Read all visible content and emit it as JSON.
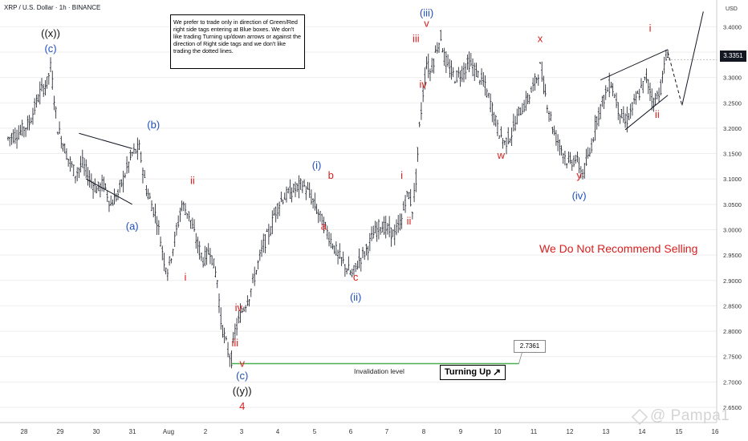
{
  "header": {
    "title": "XRP / U.S. Dollar · 1h · BINANCE"
  },
  "note_text": "We prefer to trade only in direction of Green/Red right side tags entering at Blue boxes. We don't like trading Turning up/down arrows or against the direction of Right side tags and we don't like trading the dotted lines.",
  "turning_up": {
    "label": "Turning Up",
    "icon": "arrow-up-right-icon"
  },
  "invalidation": {
    "label": "Invalidation level",
    "value": "2.7361"
  },
  "recommendation": "We Do Not Recommend Selling",
  "current_price": "3.3351",
  "axis_unit": "USD",
  "watermark": "@ Pampa1",
  "colors": {
    "red": "#d91e1e",
    "blue": "#1f4fbf",
    "green": "#4caf50",
    "candle": "#131722",
    "grid": "#eeeeee"
  },
  "chart_data": {
    "type": "candlestick-elliott-wave",
    "symbol": "XRP / U.S. Dollar",
    "timeframe": "1h",
    "exchange": "BINANCE",
    "ylim": [
      2.62,
      3.44
    ],
    "y_ticks": [
      "3.4000",
      "3.3500",
      "3.3000",
      "3.2500",
      "3.2000",
      "3.1500",
      "3.1000",
      "3.0500",
      "3.0000",
      "2.9500",
      "2.9000",
      "2.8500",
      "2.8000",
      "2.7500",
      "2.7000",
      "2.6500"
    ],
    "x_ticks": [
      "28",
      "29",
      "30",
      "31",
      "Aug",
      "2",
      "3",
      "4",
      "5",
      "6",
      "7",
      "8",
      "9",
      "10",
      "11",
      "12",
      "13",
      "14",
      "15",
      "16"
    ],
    "price_path": [
      [
        0,
        3.18
      ],
      [
        3,
        3.19
      ],
      [
        6,
        3.21
      ],
      [
        9,
        3.27
      ],
      [
        11,
        3.29
      ],
      [
        12,
        3.32
      ],
      [
        14,
        3.2
      ],
      [
        17,
        3.14
      ],
      [
        19,
        3.11
      ],
      [
        21,
        3.13
      ],
      [
        23,
        3.1
      ],
      [
        25,
        3.08
      ],
      [
        27,
        3.09
      ],
      [
        29,
        3.05
      ],
      [
        31,
        3.07
      ],
      [
        33,
        3.11
      ],
      [
        35,
        3.15
      ],
      [
        37,
        3.16
      ],
      [
        39,
        3.08
      ],
      [
        42,
        3.02
      ],
      [
        44,
        2.94
      ],
      [
        45,
        2.92
      ],
      [
        47,
        2.98
      ],
      [
        49,
        3.05
      ],
      [
        51,
        3.03
      ],
      [
        53,
        2.98
      ],
      [
        55,
        2.94
      ],
      [
        57,
        2.96
      ],
      [
        59,
        2.9
      ],
      [
        60,
        2.82
      ],
      [
        62,
        2.76
      ],
      [
        63,
        2.745
      ],
      [
        64,
        2.8
      ],
      [
        66,
        2.84
      ],
      [
        68,
        2.87
      ],
      [
        70,
        2.92
      ],
      [
        72,
        2.97
      ],
      [
        74,
        3.0
      ],
      [
        75,
        3.03
      ],
      [
        77,
        3.06
      ],
      [
        79,
        3.07
      ],
      [
        81,
        3.08
      ],
      [
        83,
        3.09
      ],
      [
        85,
        3.07
      ],
      [
        87,
        3.04
      ],
      [
        89,
        3.01
      ],
      [
        91,
        2.98
      ],
      [
        93,
        2.95
      ],
      [
        95,
        2.93
      ],
      [
        97,
        2.91
      ],
      [
        99,
        2.94
      ],
      [
        101,
        2.96
      ],
      [
        103,
        2.99
      ],
      [
        105,
        3.01
      ],
      [
        107,
        3.0
      ],
      [
        109,
        2.99
      ],
      [
        111,
        3.02
      ],
      [
        112,
        3.06
      ],
      [
        113,
        3.07
      ],
      [
        114,
        3.04
      ],
      [
        115,
        3.1
      ],
      [
        116,
        3.2
      ],
      [
        117,
        3.27
      ],
      [
        118,
        3.33
      ],
      [
        119,
        3.31
      ],
      [
        121,
        3.36
      ],
      [
        122,
        3.38
      ],
      [
        123,
        3.34
      ],
      [
        124,
        3.32
      ],
      [
        126,
        3.3
      ],
      [
        128,
        3.31
      ],
      [
        130,
        3.33
      ],
      [
        132,
        3.31
      ],
      [
        134,
        3.29
      ],
      [
        136,
        3.25
      ],
      [
        138,
        3.2
      ],
      [
        140,
        3.17
      ],
      [
        142,
        3.19
      ],
      [
        144,
        3.23
      ],
      [
        146,
        3.25
      ],
      [
        148,
        3.28
      ],
      [
        150,
        3.32
      ],
      [
        152,
        3.25
      ],
      [
        154,
        3.19
      ],
      [
        156,
        3.16
      ],
      [
        158,
        3.13
      ],
      [
        160,
        3.14
      ],
      [
        162,
        3.11
      ],
      [
        164,
        3.15
      ],
      [
        166,
        3.22
      ],
      [
        168,
        3.26
      ],
      [
        170,
        3.29
      ],
      [
        172,
        3.24
      ],
      [
        174,
        3.21
      ],
      [
        176,
        3.24
      ],
      [
        178,
        3.27
      ],
      [
        180,
        3.3
      ],
      [
        182,
        3.25
      ],
      [
        184,
        3.28
      ],
      [
        185,
        3.32
      ],
      [
        186,
        3.35
      ]
    ],
    "projection": [
      [
        186,
        3.35
      ],
      [
        190,
        3.245
      ],
      [
        196,
        3.43
      ]
    ],
    "trendlines": [
      {
        "from": [
          20,
          3.19
        ],
        "to": [
          35,
          3.16
        ]
      },
      {
        "from": [
          22,
          3.1
        ],
        "to": [
          35,
          3.05
        ]
      },
      {
        "from": [
          167,
          3.295
        ],
        "to": [
          186,
          3.355
        ]
      },
      {
        "from": [
          174,
          3.197
        ],
        "to": [
          186,
          3.265
        ]
      }
    ],
    "invalidation_line": {
      "from": [
        63,
        2.7361
      ],
      "to": [
        144,
        2.7361
      ]
    },
    "labels": [
      {
        "text": "((x))",
        "x": 12,
        "y": 3.38,
        "color": "black"
      },
      {
        "text": "(c)",
        "x": 12,
        "y": 3.35,
        "color": "blue"
      },
      {
        "text": "(a)",
        "x": 35,
        "y": 3.0,
        "color": "blue"
      },
      {
        "text": "(b)",
        "x": 41,
        "y": 3.2,
        "color": "blue"
      },
      {
        "text": "ii",
        "x": 52,
        "y": 3.09,
        "color": "red"
      },
      {
        "text": "i",
        "x": 50,
        "y": 2.9,
        "color": "red"
      },
      {
        "text": "iv",
        "x": 65,
        "y": 2.84,
        "color": "red"
      },
      {
        "text": "iii",
        "x": 64,
        "y": 2.77,
        "color": "red"
      },
      {
        "text": "v",
        "x": 66,
        "y": 2.73,
        "color": "red"
      },
      {
        "text": "(c)",
        "x": 66,
        "y": 2.705,
        "color": "blue"
      },
      {
        "text": "((y))",
        "x": 66,
        "y": 2.675,
        "color": "black"
      },
      {
        "text": "4",
        "x": 66,
        "y": 2.645,
        "color": "red"
      },
      {
        "text": "(i)",
        "x": 87,
        "y": 3.12,
        "color": "blue"
      },
      {
        "text": "b",
        "x": 91,
        "y": 3.1,
        "color": "red"
      },
      {
        "text": "a",
        "x": 89,
        "y": 3.0,
        "color": "red"
      },
      {
        "text": "c",
        "x": 98,
        "y": 2.9,
        "color": "red"
      },
      {
        "text": "(ii)",
        "x": 98,
        "y": 2.86,
        "color": "blue"
      },
      {
        "text": "i",
        "x": 111,
        "y": 3.1,
        "color": "red"
      },
      {
        "text": "ii",
        "x": 113,
        "y": 3.01,
        "color": "red"
      },
      {
        "text": "(iii)",
        "x": 118,
        "y": 3.42,
        "color": "blue"
      },
      {
        "text": "v",
        "x": 118,
        "y": 3.4,
        "color": "red"
      },
      {
        "text": "iii",
        "x": 115,
        "y": 3.37,
        "color": "red"
      },
      {
        "text": "iv",
        "x": 117,
        "y": 3.28,
        "color": "red"
      },
      {
        "text": "x",
        "x": 150,
        "y": 3.37,
        "color": "red"
      },
      {
        "text": "w",
        "x": 139,
        "y": 3.14,
        "color": "red"
      },
      {
        "text": "y",
        "x": 161,
        "y": 3.1,
        "color": "red"
      },
      {
        "text": "(iv)",
        "x": 161,
        "y": 3.06,
        "color": "blue"
      },
      {
        "text": "i",
        "x": 181,
        "y": 3.39,
        "color": "red"
      },
      {
        "text": "ii",
        "x": 183,
        "y": 3.22,
        "color": "red"
      }
    ]
  }
}
